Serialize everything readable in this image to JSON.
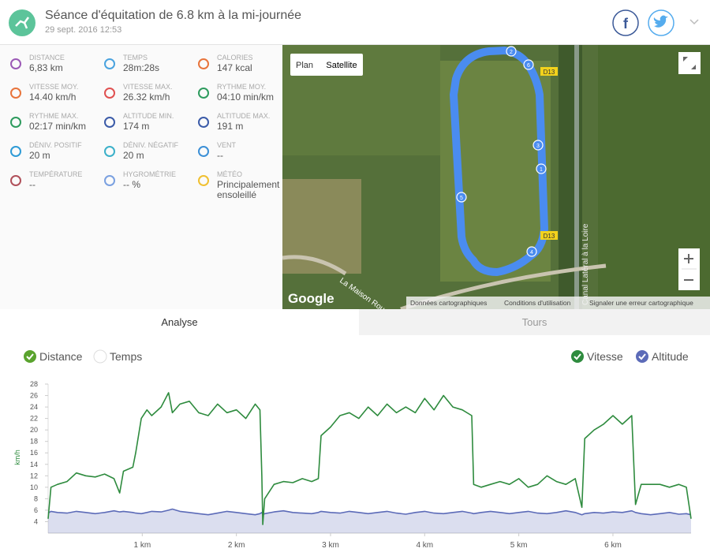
{
  "header": {
    "title": "Séance d'équitation de 6.8 km à la mi-journée",
    "date": "29 sept. 2016 12:53"
  },
  "stats": [
    {
      "label": "DISTANCE",
      "value": "6,83 km"
    },
    {
      "label": "TEMPS",
      "value": "28m:28s"
    },
    {
      "label": "CALORIES",
      "value": "147 kcal"
    },
    {
      "label": "VITESSE MOY.",
      "value": "14.40 km/h"
    },
    {
      "label": "VITESSE MAX.",
      "value": "26.32 km/h"
    },
    {
      "label": "RYTHME MOY.",
      "value": "04:10 min/km"
    },
    {
      "label": "RYTHME MAX.",
      "value": "02:17 min/km"
    },
    {
      "label": "ALTITUDE MIN.",
      "value": "174 m"
    },
    {
      "label": "ALTITUDE MAX.",
      "value": "191 m"
    },
    {
      "label": "DÉNIV. POSITIF",
      "value": "20 m"
    },
    {
      "label": "DÉNIV. NÉGATIF",
      "value": "20 m"
    },
    {
      "label": "VENT",
      "value": "--"
    },
    {
      "label": "TEMPÉRATURE",
      "value": "--"
    },
    {
      "label": "HYGROMÉTRIE",
      "value": "-- %"
    },
    {
      "label": "MÉTÉO",
      "value": "Principalement ensoleillé"
    }
  ],
  "map": {
    "buttons": [
      "Plan",
      "Satellite"
    ],
    "road_labels": [
      "D13",
      "D13"
    ],
    "street": "La Maison Rouge",
    "canal": "Canal Latéral à la Loire",
    "logo": "Google",
    "attribution": [
      "Données cartographiques",
      "Conditions d'utilisation",
      "Signaler une erreur cartographique"
    ],
    "waypoints": [
      "2",
      "6",
      "3",
      "1",
      "5",
      "4"
    ]
  },
  "tabs": [
    "Analyse",
    "Tours"
  ],
  "x_axis_options": [
    "Distance",
    "Temps"
  ],
  "chart_data": {
    "type": "line",
    "y_label": "km/h",
    "x": [
      0,
      0.03,
      0.1,
      0.2,
      0.3,
      0.4,
      0.5,
      0.6,
      0.7,
      0.76,
      0.8,
      0.9,
      0.93,
      0.99,
      1.05,
      1.1,
      1.2,
      1.28,
      1.32,
      1.4,
      1.5,
      1.6,
      1.7,
      1.8,
      1.9,
      2.0,
      2.1,
      2.2,
      2.25,
      2.27,
      2.28,
      2.3,
      2.4,
      2.5,
      2.6,
      2.7,
      2.8,
      2.87,
      2.9,
      3.0,
      3.1,
      3.2,
      3.3,
      3.4,
      3.5,
      3.6,
      3.7,
      3.8,
      3.9,
      4.0,
      4.1,
      4.2,
      4.3,
      4.4,
      4.5,
      4.52,
      4.6,
      4.7,
      4.8,
      4.9,
      5.0,
      5.1,
      5.2,
      5.3,
      5.4,
      5.5,
      5.6,
      5.67,
      5.7,
      5.8,
      5.9,
      6.0,
      6.1,
      6.2,
      6.24,
      6.3,
      6.4,
      6.5,
      6.6,
      6.7,
      6.78,
      6.83
    ],
    "series": [
      {
        "name": "Vitesse",
        "color": "#2e8b3e",
        "values": [
          4.5,
          10,
          10.5,
          11,
          12.5,
          12,
          11.8,
          12.3,
          11.5,
          9,
          12.8,
          13.5,
          16,
          22,
          23.5,
          22.5,
          24,
          26.5,
          23,
          24.5,
          25,
          23,
          22.5,
          24.5,
          23,
          23.5,
          22,
          24.5,
          23.5,
          12,
          3.5,
          8,
          10.5,
          11,
          10.8,
          11.5,
          11,
          11.5,
          19,
          20.5,
          22.5,
          23,
          22,
          24,
          22.5,
          24.5,
          23,
          24,
          23,
          25.5,
          23.5,
          26,
          24,
          23.5,
          22.5,
          10.5,
          10,
          10.5,
          11,
          10.5,
          11.5,
          10,
          10.5,
          12,
          11,
          10.5,
          11.5,
          6.5,
          18.5,
          20,
          21,
          22.5,
          21,
          22.5,
          7,
          10.5,
          10.5,
          10.5,
          10,
          10.5,
          10,
          4.5
        ]
      },
      {
        "name": "Altitude",
        "color": "#5c6bb8",
        "values": [
          5.5,
          5.8,
          5.6,
          5.5,
          5.8,
          5.6,
          5.4,
          5.6,
          5.9,
          5.7,
          5.8,
          5.6,
          5.5,
          5.4,
          5.6,
          5.8,
          5.7,
          6,
          6.2,
          5.8,
          5.6,
          5.4,
          5.2,
          5.5,
          5.8,
          5.6,
          5.4,
          5.2,
          5.4,
          5.6,
          5.2,
          5.4,
          5.7,
          5.9,
          5.6,
          5.5,
          5.4,
          5.6,
          5.8,
          5.6,
          5.5,
          5.8,
          5.6,
          5.4,
          5.6,
          5.8,
          5.5,
          5.3,
          5.6,
          5.8,
          5.5,
          5.4,
          5.6,
          5.8,
          5.5,
          5.4,
          5.6,
          5.8,
          5.6,
          5.4,
          5.6,
          5.8,
          5.5,
          5.4,
          5.6,
          5.9,
          5.6,
          5.2,
          5.4,
          5.6,
          5.5,
          5.7,
          5.6,
          5.9,
          5.6,
          5.4,
          5.2,
          5.4,
          5.6,
          5.3,
          5.4,
          5.2
        ]
      }
    ],
    "xlim": [
      0,
      6.83
    ],
    "ylim": [
      2,
      28
    ],
    "xticks": [
      {
        "value": 1,
        "label": "1 km"
      },
      {
        "value": 2,
        "label": "2 km"
      },
      {
        "value": 3,
        "label": "3 km"
      },
      {
        "value": 4,
        "label": "4 km"
      },
      {
        "value": 5,
        "label": "5 km"
      },
      {
        "value": 6,
        "label": "6 km"
      }
    ],
    "yticks": [
      4,
      6,
      8,
      10,
      12,
      14,
      16,
      18,
      20,
      22,
      24,
      26,
      28
    ],
    "grid": false,
    "legend": "top-right"
  }
}
